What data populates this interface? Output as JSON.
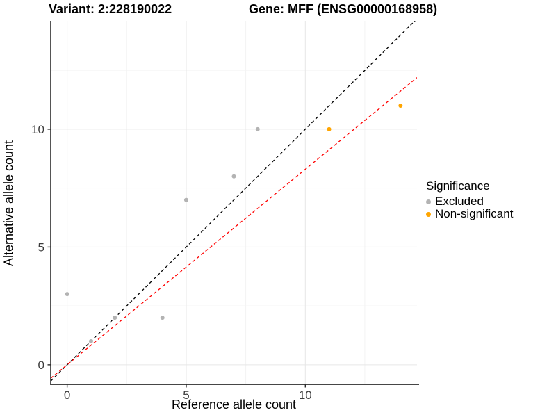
{
  "titles": {
    "variant": "Variant: 2:228190022",
    "gene": "Gene: MFF (ENSG00000168958)"
  },
  "chart_data": {
    "type": "scatter",
    "title_left": "Variant: 2:228190022",
    "title_right": "Gene: MFF (ENSG00000168958)",
    "xlabel": "Reference allele count",
    "ylabel": "Alternative allele count",
    "xlim": [
      -0.69,
      14.69
    ],
    "ylim": [
      -0.83,
      14.6
    ],
    "x_major_ticks": [
      0,
      5,
      10
    ],
    "y_major_ticks": [
      0,
      5,
      10
    ],
    "x_minor_gridlines": [
      2.5,
      7.5,
      12.5
    ],
    "y_minor_gridlines": [
      2.5,
      7.5,
      12.5
    ],
    "grid": true,
    "series": [
      {
        "name": "Excluded",
        "color": "#B3B3B3",
        "points": [
          [
            0,
            3
          ],
          [
            1,
            1
          ],
          [
            2,
            2
          ],
          [
            4,
            2
          ],
          [
            5,
            7
          ],
          [
            7,
            8
          ],
          [
            8,
            10
          ]
        ]
      },
      {
        "name": "Non-significant",
        "color": "#FFA500",
        "points": [
          [
            11,
            10
          ],
          [
            14,
            11
          ]
        ]
      }
    ],
    "lines": [
      {
        "name": "identity-line",
        "slope": 1.0,
        "intercept": 0,
        "color": "#000000",
        "style": "dashed"
      },
      {
        "name": "fitted-line",
        "slope": 0.83,
        "intercept": 0,
        "color": "#FF0000",
        "style": "dashed"
      }
    ],
    "legend": {
      "title": "Significance",
      "position": "right",
      "entries": [
        {
          "label": "Excluded",
          "color": "#B3B3B3"
        },
        {
          "label": "Non-significant",
          "color": "#FFA500"
        }
      ]
    },
    "colors": {
      "major_grid": "#E6E6E6",
      "minor_grid": "#F3F3F3",
      "axis_line": "#2B2B2B",
      "tick_text": "#3C3C3C"
    }
  }
}
